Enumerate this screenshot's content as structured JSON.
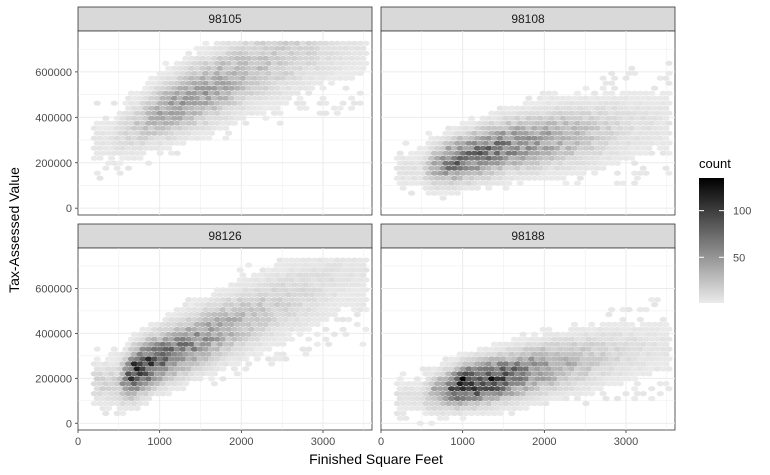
{
  "chart_data": {
    "type": "hexbin",
    "title": "",
    "xlabel": "Finished Square Feet",
    "ylabel": "Tax-Assessed Value",
    "xlim": [
      0,
      3600
    ],
    "ylim": [
      -30000,
      780000
    ],
    "x_ticks": [
      0,
      1000,
      2000,
      3000
    ],
    "y_ticks": [
      0,
      200000,
      400000,
      600000
    ],
    "grid": true,
    "legend": {
      "title": "count",
      "position": "right",
      "ticks": [
        50,
        100
      ],
      "range": [
        1,
        135
      ],
      "colors": [
        "#ebebeb",
        "#000000"
      ]
    },
    "facets": [
      {
        "label": "98105",
        "density_ridge": [
          [
            400,
            300000,
            3
          ],
          [
            700,
            360000,
            12
          ],
          [
            1000,
            420000,
            28
          ],
          [
            1300,
            470000,
            38
          ],
          [
            1600,
            520000,
            36
          ],
          [
            1900,
            570000,
            26
          ],
          [
            2200,
            620000,
            18
          ],
          [
            2600,
            680000,
            12
          ],
          [
            3000,
            720000,
            6
          ],
          [
            3400,
            740000,
            3
          ]
        ],
        "spread": 50000
      },
      {
        "label": "98108",
        "density_ridge": [
          [
            500,
            170000,
            4
          ],
          [
            800,
            200000,
            55
          ],
          [
            1000,
            220000,
            70
          ],
          [
            1200,
            240000,
            60
          ],
          [
            1500,
            270000,
            55
          ],
          [
            1800,
            290000,
            40
          ],
          [
            2200,
            310000,
            28
          ],
          [
            2600,
            330000,
            14
          ],
          [
            3000,
            360000,
            6
          ],
          [
            3400,
            380000,
            3
          ]
        ],
        "spread": 40000
      },
      {
        "label": "98126",
        "density_ridge": [
          [
            500,
            180000,
            10
          ],
          [
            700,
            230000,
            110
          ],
          [
            900,
            270000,
            80
          ],
          [
            1200,
            320000,
            60
          ],
          [
            1500,
            370000,
            42
          ],
          [
            1800,
            420000,
            28
          ],
          [
            2100,
            470000,
            18
          ],
          [
            2500,
            540000,
            10
          ],
          [
            2900,
            600000,
            6
          ],
          [
            3300,
            660000,
            3
          ]
        ],
        "spread": 45000
      },
      {
        "label": "98188",
        "density_ridge": [
          [
            500,
            120000,
            4
          ],
          [
            800,
            150000,
            50
          ],
          [
            1000,
            170000,
            120
          ],
          [
            1300,
            190000,
            95
          ],
          [
            1600,
            210000,
            70
          ],
          [
            1900,
            240000,
            45
          ],
          [
            2200,
            260000,
            28
          ],
          [
            2600,
            290000,
            14
          ],
          [
            3000,
            320000,
            6
          ],
          [
            3400,
            340000,
            3
          ]
        ],
        "spread": 35000
      }
    ]
  }
}
